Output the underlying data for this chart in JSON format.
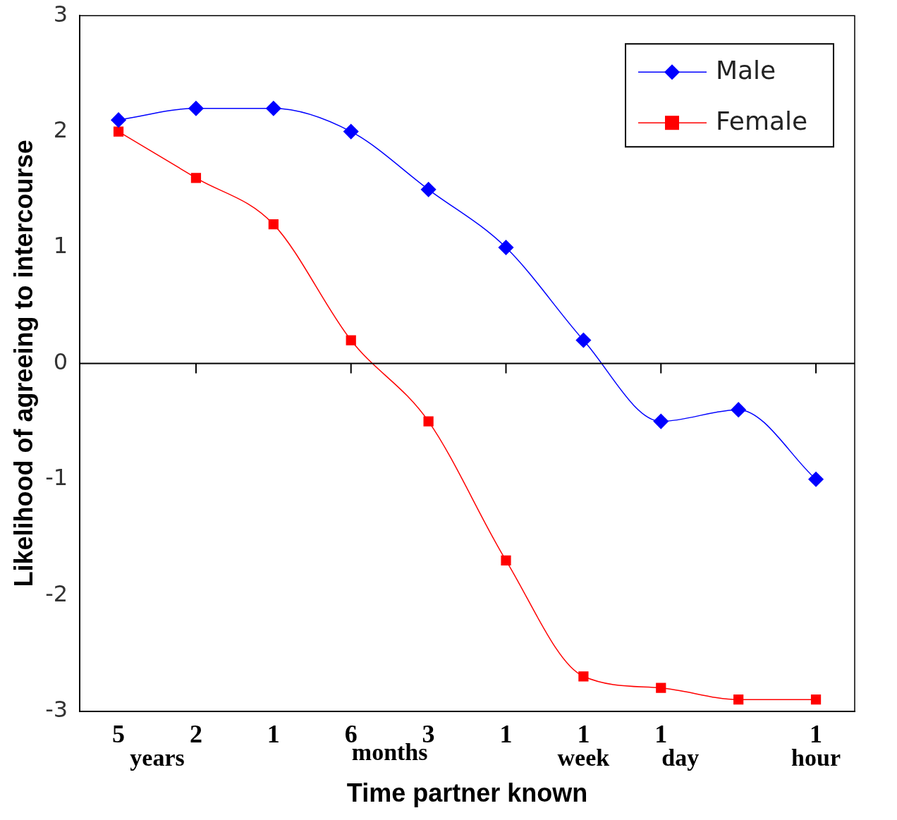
{
  "chart_data": {
    "type": "line",
    "xlabel": "Time partner known",
    "ylabel": "Likelihood of agreeing to intercourse",
    "categories": [
      "5",
      "2",
      "1",
      "6",
      "3",
      "1",
      "1",
      "1",
      null,
      "1"
    ],
    "series": [
      {
        "name": "Male",
        "color": "#0000ff",
        "marker": "diamond",
        "values": [
          2.1,
          2.2,
          2.2,
          2.0,
          1.5,
          1.0,
          0.2,
          -0.5,
          -0.4,
          -1.0
        ]
      },
      {
        "name": "Female",
        "color": "#ff0000",
        "marker": "square",
        "values": [
          2.0,
          1.6,
          1.2,
          0.2,
          -0.5,
          -1.7,
          -2.7,
          -2.8,
          -2.9,
          -2.9
        ]
      }
    ],
    "annotations": [
      "years",
      "months",
      "week",
      "day",
      "hour"
    ],
    "ylim": [
      -3,
      3
    ],
    "yticks": [
      -3,
      -2,
      -1,
      0,
      1,
      2,
      3
    ],
    "ref_lines": [
      {
        "axis": "y",
        "value": 0,
        "color": "#000000"
      }
    ],
    "grid": false,
    "legend": "top right",
    "line_style": "solid"
  }
}
